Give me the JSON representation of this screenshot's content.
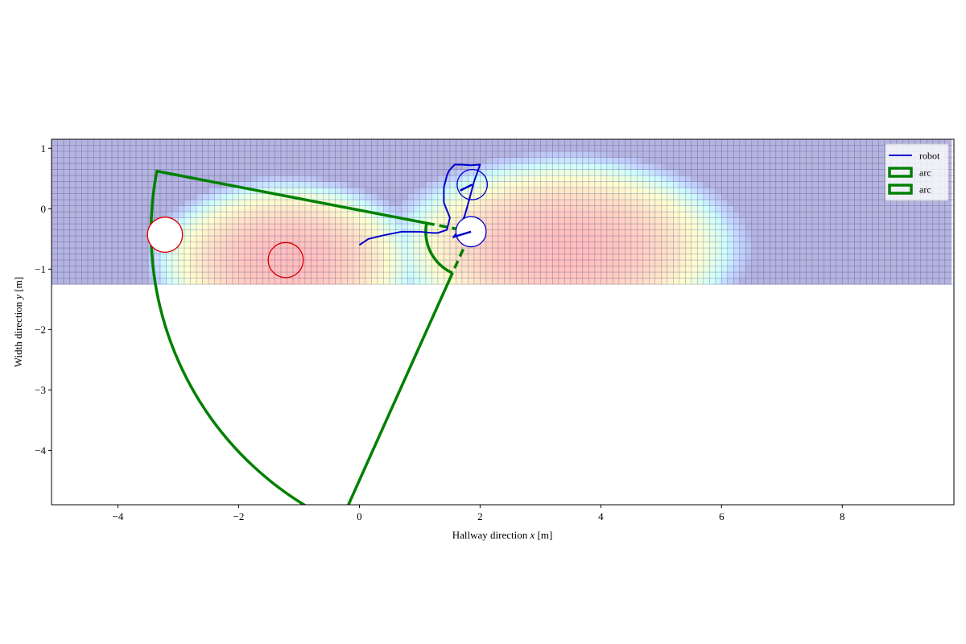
{
  "chart_data": {
    "type": "scatter",
    "title": "",
    "xlabel_prefix": "Hallway direction ",
    "xlabel_var": "x",
    "xlabel_unit": " [m]",
    "ylabel_prefix": "Width direction ",
    "ylabel_var": "y",
    "ylabel_unit": " [m]",
    "xlim": [
      -5.1,
      9.85
    ],
    "ylim": [
      -4.9,
      1.15
    ],
    "x_ticks": [
      {
        "value": -4,
        "label": "−4"
      },
      {
        "value": -2,
        "label": "−2"
      },
      {
        "value": 0,
        "label": "0"
      },
      {
        "value": 2,
        "label": "2"
      },
      {
        "value": 4,
        "label": "4"
      },
      {
        "value": 6,
        "label": "6"
      },
      {
        "value": 8,
        "label": "8"
      }
    ],
    "y_ticks": [
      {
        "value": 1,
        "label": "1"
      },
      {
        "value": 0,
        "label": "0"
      },
      {
        "value": -1,
        "label": "−1"
      },
      {
        "value": -2,
        "label": "−2"
      },
      {
        "value": -3,
        "label": "−3"
      },
      {
        "value": -4,
        "label": "−4"
      }
    ],
    "grid": false,
    "legend_position": "top-right",
    "legend": [
      {
        "label": "robot",
        "kind": "line",
        "color": "#0000cc"
      },
      {
        "label": "arc",
        "kind": "patch",
        "color": "#008000"
      },
      {
        "label": "arc",
        "kind": "patch",
        "color": "#008000"
      }
    ],
    "heatmap": {
      "x_range": [
        -5.1,
        9.85
      ],
      "y_range": [
        -1.25,
        1.15
      ],
      "cell": 0.1,
      "blobs": [
        {
          "x": -1.2,
          "y": -0.85,
          "strength": 1.0,
          "rx": 2.35,
          "ry": 1.4
        },
        {
          "x": 3.4,
          "y": -0.65,
          "strength": 1.0,
          "rx": 3.1,
          "ry": 1.6
        }
      ]
    },
    "robot_path": {
      "x": [
        0.0,
        0.15,
        0.4,
        0.7,
        1.0,
        1.2,
        1.3,
        1.45,
        1.5,
        1.4,
        1.4,
        1.45,
        1.48,
        1.52,
        1.55,
        1.58,
        1.68,
        1.85,
        2.0,
        1.9,
        1.82,
        1.75,
        1.65,
        1.55
      ],
      "y": [
        -0.6,
        -0.5,
        -0.44,
        -0.38,
        -0.38,
        -0.4,
        -0.4,
        -0.35,
        -0.15,
        0.1,
        0.35,
        0.55,
        0.62,
        0.67,
        0.7,
        0.73,
        0.73,
        0.72,
        0.73,
        0.45,
        0.15,
        -0.1,
        -0.35,
        -0.48
      ]
    },
    "robot_heading_top": {
      "x": [
        1.67,
        1.87
      ],
      "y": [
        0.3,
        0.4
      ]
    },
    "robot_heading_bottom": {
      "x": [
        1.55,
        1.85
      ],
      "y": [
        -0.47,
        -0.38
      ]
    },
    "robots": [
      {
        "x": 1.87,
        "y": 0.4,
        "r": 0.25,
        "fill": "none",
        "color": "#0000cc"
      },
      {
        "x": 1.85,
        "y": -0.38,
        "r": 0.25,
        "fill": "#ffffff",
        "color": "#0000cc"
      }
    ],
    "obstacles": [
      {
        "x": -3.22,
        "y": -0.43,
        "r": 0.29,
        "fill": "#ffffff",
        "color": "#dd0000"
      },
      {
        "x": -1.22,
        "y": -0.85,
        "r": 0.29,
        "fill": "none",
        "color": "#dd0000"
      }
    ],
    "arcs": [
      {
        "cx": 1.85,
        "cy": -0.38,
        "r_inner": 0.75,
        "r_outer": 5.3,
        "start_deg": 169.1,
        "end_deg": 245.8,
        "inner_dashed": true,
        "color": "#008000"
      }
    ]
  }
}
